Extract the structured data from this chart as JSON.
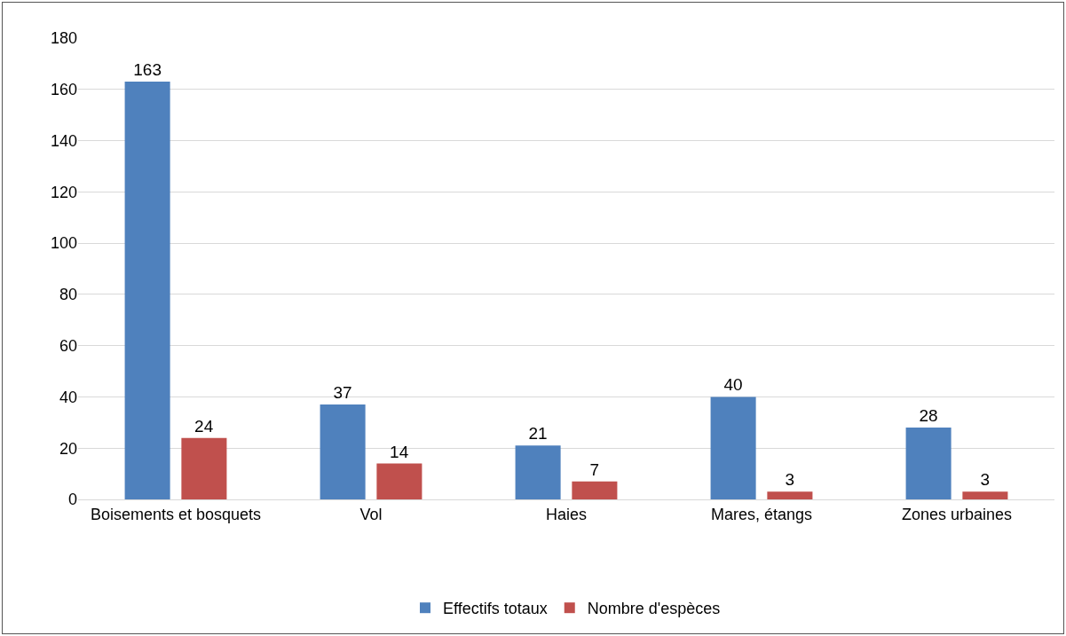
{
  "chart_data": {
    "type": "bar",
    "categories": [
      "Boisements et bosquets",
      "Vol",
      "Haies",
      "Mares, étangs",
      "Zones urbaines"
    ],
    "series": [
      {
        "name": "Effectifs totaux",
        "color": "#4f81bd",
        "values": [
          163,
          37,
          21,
          40,
          28
        ]
      },
      {
        "name": "Nombre d'espèces",
        "color": "#c0504d",
        "values": [
          24,
          14,
          7,
          3,
          3
        ]
      }
    ],
    "ylim": [
      0,
      180
    ],
    "yticks": [
      0,
      20,
      40,
      60,
      80,
      100,
      120,
      140,
      160,
      180
    ],
    "grid": "y",
    "legend": "bottom",
    "data_labels": true
  }
}
